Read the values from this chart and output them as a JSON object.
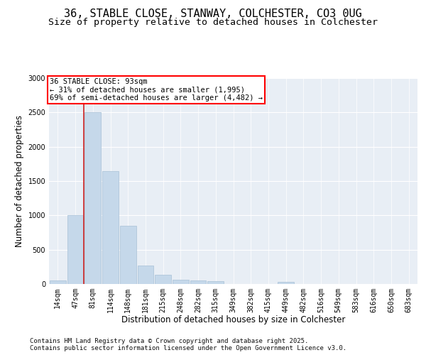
{
  "title_line1": "36, STABLE CLOSE, STANWAY, COLCHESTER, CO3 0UG",
  "title_line2": "Size of property relative to detached houses in Colchester",
  "xlabel": "Distribution of detached houses by size in Colchester",
  "ylabel": "Number of detached properties",
  "categories": [
    "14sqm",
    "47sqm",
    "81sqm",
    "114sqm",
    "148sqm",
    "181sqm",
    "215sqm",
    "248sqm",
    "282sqm",
    "315sqm",
    "349sqm",
    "382sqm",
    "415sqm",
    "449sqm",
    "482sqm",
    "516sqm",
    "549sqm",
    "583sqm",
    "616sqm",
    "650sqm",
    "683sqm"
  ],
  "values": [
    50,
    1000,
    2500,
    1650,
    850,
    270,
    130,
    60,
    55,
    40,
    0,
    0,
    0,
    30,
    0,
    0,
    0,
    0,
    0,
    0,
    0
  ],
  "bar_color": "#c5d8ea",
  "bar_edgecolor": "#a8c0d6",
  "annotation_text": "36 STABLE CLOSE: 93sqm\n← 31% of detached houses are smaller (1,995)\n69% of semi-detached houses are larger (4,482) →",
  "vline_color": "#cc2222",
  "vline_x_idx": 2,
  "ylim": [
    0,
    3000
  ],
  "yticks": [
    0,
    500,
    1000,
    1500,
    2000,
    2500,
    3000
  ],
  "bg_color": "#e8eef5",
  "grid_color": "#ffffff",
  "footer_line1": "Contains HM Land Registry data © Crown copyright and database right 2025.",
  "footer_line2": "Contains public sector information licensed under the Open Government Licence v3.0.",
  "title_fontsize": 11,
  "subtitle_fontsize": 9.5,
  "footer_fontsize": 6.5,
  "xlabel_fontsize": 8.5,
  "ylabel_fontsize": 8.5,
  "tick_fontsize": 7,
  "annot_fontsize": 7.5
}
